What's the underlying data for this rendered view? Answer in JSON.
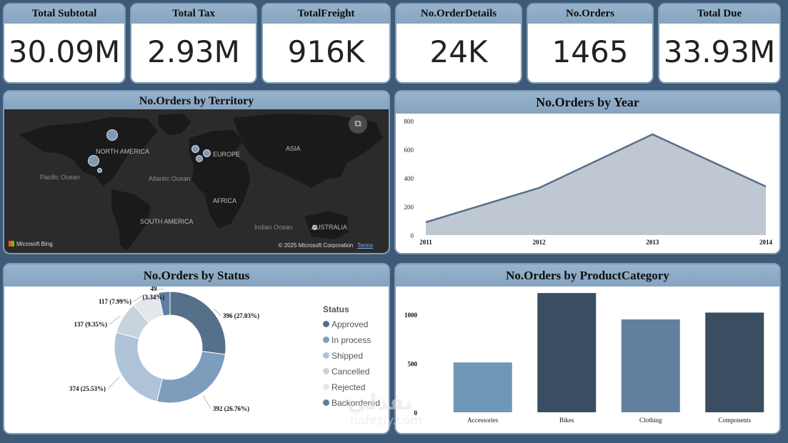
{
  "kpis": [
    {
      "title": "Total Subtotal",
      "value": "30.09M"
    },
    {
      "title": "Total Tax",
      "value": "2.93M"
    },
    {
      "title": "TotalFreight",
      "value": "916K"
    },
    {
      "title": "No.OrderDetails",
      "value": "24K"
    },
    {
      "title": "No.Orders",
      "value": "1465"
    },
    {
      "title": "Total Due",
      "value": "33.93M"
    }
  ],
  "map": {
    "title": "No.Orders by Territory",
    "labels": {
      "north_america": "NORTH AMERICA",
      "europe": "EUROPE",
      "asia": "ASIA",
      "pacific": "Pacific Ocean",
      "atlantic": "Atlantic Ocean",
      "africa": "AFRICA",
      "south_america": "SOUTH AMERICA",
      "indian": "Indian Ocean",
      "australia": "AUSTRALIA"
    },
    "attribution": "Microsoft Bing",
    "copyright": "© 2025 Microsoft Corporation",
    "terms": "Terms",
    "focus_icon": "focus-mode-icon"
  },
  "year_chart": {
    "title": "No.Orders by Year",
    "chart_data": {
      "type": "area",
      "x": [
        "2011",
        "2012",
        "2013",
        "2014"
      ],
      "values": [
        90,
        330,
        705,
        340
      ],
      "ylim": [
        0,
        800
      ],
      "yticks": [
        "0",
        "200",
        "400",
        "600",
        "800"
      ],
      "color": "#56708a",
      "fill": "#bfc8d2"
    }
  },
  "status_chart": {
    "title": "No.Orders by Status",
    "legend_title": "Status",
    "chart_data": {
      "type": "pie",
      "categories": [
        "Approved",
        "In process",
        "Shipped",
        "Cancelled",
        "Rejected",
        "Backordered"
      ],
      "values": [
        396,
        392,
        374,
        137,
        117,
        49
      ],
      "labels": [
        "396 (27.03%)",
        "392 (26.76%)",
        "374 (25.53%)",
        "137 (9.35%)",
        "117 (7.99%)",
        "49 (3.34%)"
      ],
      "colors": [
        "#56708a",
        "#7d9dbd",
        "#aec3d8",
        "#c9d3dd",
        "#e4e8ed",
        "#5e7fa4"
      ]
    }
  },
  "category_chart": {
    "title": "No.Orders by ProductCategory",
    "chart_data": {
      "type": "bar",
      "categories": [
        "Accessories",
        "Bikes",
        "Clothing",
        "Components"
      ],
      "values": [
        510,
        1220,
        950,
        1020
      ],
      "ylim": [
        0,
        1250
      ],
      "yticks": [
        "0",
        "500",
        "1000"
      ],
      "colors": [
        "#6e97b8",
        "#3a4e63",
        "#61809f",
        "#3b4d60"
      ]
    }
  },
  "watermark": {
    "arabic": "نفذلي",
    "latin": "nafezly.com"
  }
}
